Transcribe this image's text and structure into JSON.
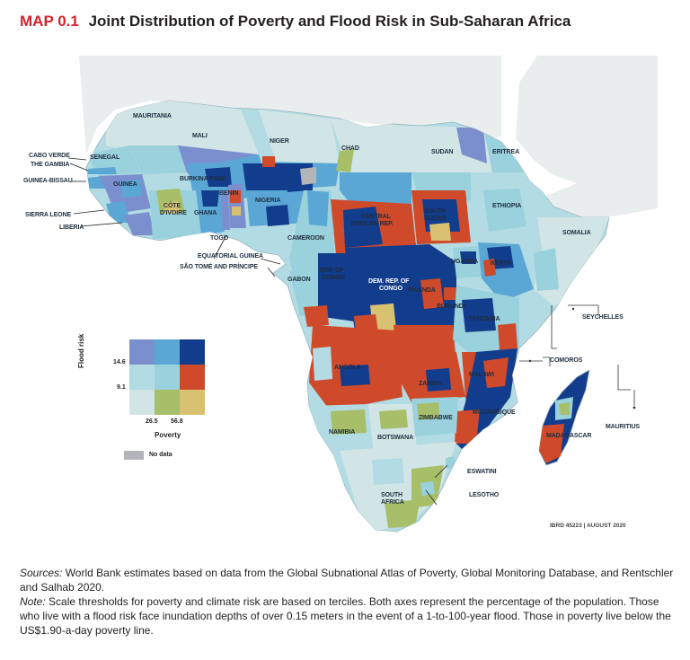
{
  "title": {
    "number": "MAP 0.1",
    "text": "Joint Distribution of Poverty and Flood Risk in Sub-Saharan Africa"
  },
  "colors": {
    "ocean": "#ffffff",
    "no_data_land": "#dde8e6",
    "no_data_legend": "#b3b5b8",
    "high_high": "#123c8c",
    "high_risk_mid_poverty": "#5aa7d6",
    "high_risk_low_poverty": "#7b8fcf",
    "mid_risk_high_poverty": "#cf4a2a",
    "mid_mid": "#99d1dc",
    "mid_risk_low_poverty": "#b2dbe3",
    "low_risk_high_poverty": "#d8c272",
    "low_risk_mid_poverty": "#a7bf69",
    "low_low": "#d1e5e6"
  },
  "labels": {
    "mauritania": "MAURITANIA",
    "mali": "MALI",
    "niger": "NIGER",
    "chad": "CHAD",
    "sudan": "SUDAN",
    "eritrea": "ERITREA",
    "cabo_verde": "CABO VERDE",
    "senegal": "SENEGAL",
    "the_gambia": "THE GAMBIA",
    "guinea_bissau": "GUINEA-BISSAU",
    "guinea": "GUINEA",
    "burkina_faso": "BURKINA FASO",
    "benin": "BENIN",
    "nigeria": "NIGERIA",
    "cote_divoire_1": "CÔTE",
    "cote_divoire_2": "D'IVOIRE",
    "ghana": "GHANA",
    "sierra_leone": "SIERRA LEONE",
    "liberia": "LIBERIA",
    "togo": "TOGO",
    "central_african_rep_1": "CENTRAL",
    "central_african_rep_2": "AFRICAN REP.",
    "south_sudan_1": "SOUTH",
    "south_sudan_2": "SUDAN",
    "ethiopia": "ETHIOPIA",
    "somalia": "SOMALIA",
    "cameroon": "CAMEROON",
    "equatorial_guinea": "EQUATORIAL GUINEA",
    "sao_tome": "SÃO TOMÉ AND PRÍNCIPE",
    "gabon": "GABON",
    "rep_congo_1": "REP. OF",
    "rep_congo_2": "CONGO",
    "dem_rep_congo_1": "DEM. REP. OF",
    "dem_rep_congo_2": "CONGO",
    "uganda": "UGANDA",
    "kenya": "KENYA",
    "rwanda": "RWANDA",
    "burundi": "BURUNDI",
    "tanzania": "TANZANIA",
    "seychelles": "SEYCHELLES",
    "comoros": "COMOROS",
    "angola": "ANGOLA",
    "zambia": "ZAMBIA",
    "malawi": "MALAWI",
    "mozambique": "MOZAMBIQUE",
    "madagascar": "MADAGASCAR",
    "mauritius": "MAURITIUS",
    "namibia": "NAMIBIA",
    "botswana": "BOTSWANA",
    "zimbabwe": "ZIMBABWE",
    "eswatini": "ESWATINI",
    "lesotho": "LESOTHO",
    "south_africa_1": "SOUTH",
    "south_africa_2": "AFRICA"
  },
  "legend": {
    "y_axis_label": "Flood risk",
    "y_tick_high": "14.6",
    "y_tick_low": "9.1",
    "x_tick_low": "26.5",
    "x_tick_high": "56.8",
    "x_axis_label": "Poverty",
    "no_data_label": "No data"
  },
  "credit": "IBRD 45223 | AUGUST 2020",
  "notes": {
    "sources_label": "Sources:",
    "sources_text": " World Bank estimates based on data from the Global Subnational Atlas of Poverty, Global Monitoring Database, and Rentschler and Salhab 2020.",
    "note_label": "Note:",
    "note_text": " Scale thresholds for poverty and climate risk are based on terciles. Both axes represent the percentage of the population. Those who live with a flood risk  face inundation depths of over 0.15 meters in the event of a 1-to-100-year flood. Those in poverty live below the US$1.90-a-day poverty line."
  }
}
